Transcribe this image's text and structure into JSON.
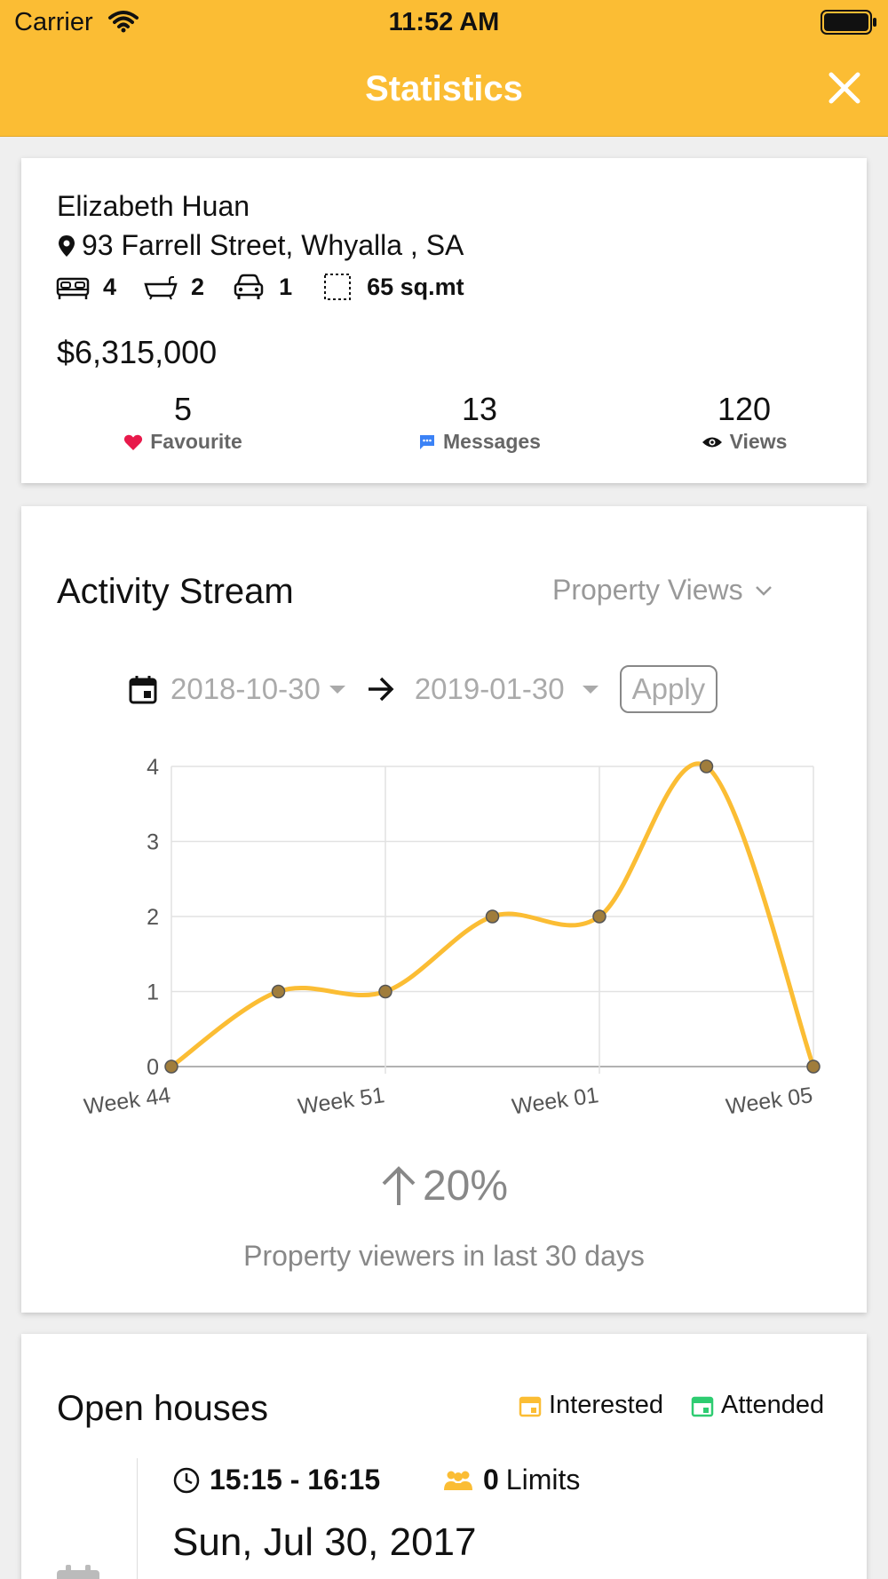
{
  "status_bar": {
    "carrier": "Carrier",
    "time": "11:52 AM"
  },
  "header": {
    "title": "Statistics"
  },
  "listing": {
    "owner": "Elizabeth Huan",
    "address": "93 Farrell Street, Whyalla , SA",
    "bedrooms": "4",
    "bathrooms": "2",
    "parking": "1",
    "area": "65 sq.mt",
    "price": "$6,315,000",
    "stats": {
      "favourite": {
        "count": "5",
        "label": "Favourite"
      },
      "messages": {
        "count": "13",
        "label": "Messages"
      },
      "views": {
        "count": "120",
        "label": "Views"
      }
    }
  },
  "activity": {
    "title": "Activity Stream",
    "metric": "Property Views",
    "start_date": "2018-10-30",
    "end_date": "2019-01-30",
    "apply_label": "Apply",
    "trend_value": "20%",
    "trend_caption": "Property viewers in last 30 days"
  },
  "chart_data": {
    "type": "line",
    "x_tick_labels": [
      "Week 44",
      "Week 51",
      "Week 01",
      "Week 05"
    ],
    "values": [
      0,
      1,
      1,
      2,
      2,
      4,
      0
    ],
    "ylim": [
      0,
      4
    ],
    "y_ticks": [
      0,
      1,
      2,
      3,
      4
    ],
    "grid": true,
    "line_color": "#fbbd34",
    "point_color": "#a07d3c"
  },
  "open_houses": {
    "title": "Open houses",
    "legend_interested": "Interested",
    "legend_attended": "Attended",
    "time_range": "15:15 - 16:15",
    "limit_count": "0",
    "limit_label": "Limits",
    "date": "Sun, Jul 30, 2017"
  },
  "colors": {
    "header": "#fbbd34",
    "interested": "#fbbd34",
    "attended": "#2ecc71",
    "heart": "#e8194b",
    "messages": "#3b82f6"
  }
}
